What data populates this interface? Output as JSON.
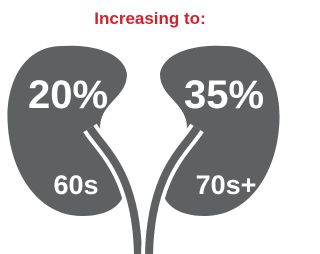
{
  "header": {
    "title": "Increasing to:"
  },
  "kidneys": [
    {
      "value": "20%",
      "age": "60s"
    },
    {
      "value": "35%",
      "age": "70s+"
    }
  ]
}
